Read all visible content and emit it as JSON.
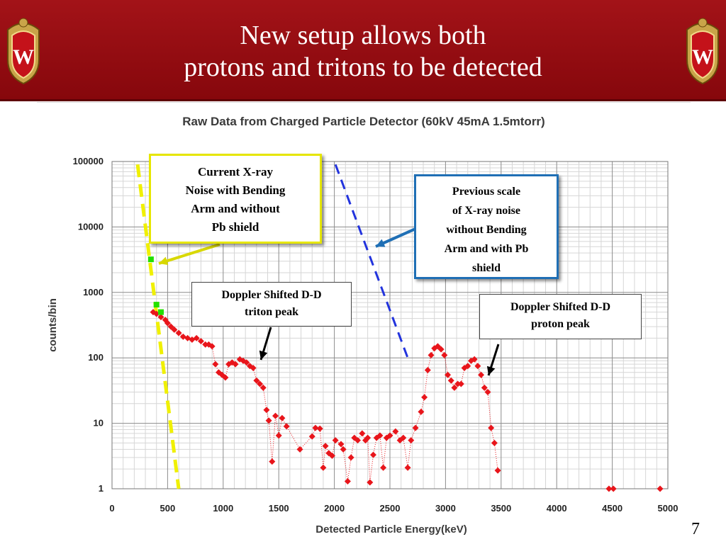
{
  "slide": {
    "title_line1": "New setup allows both",
    "title_line2": "protons and tritons to be detected",
    "page_number": "7"
  },
  "callouts": {
    "xray_current": [
      "Current X-ray",
      "Noise with Bending",
      "Arm and without",
      "Pb shield"
    ],
    "xray_previous": [
      "Previous scale",
      "of X-ray noise",
      "without Bending",
      "Arm and with Pb",
      "shield"
    ],
    "triton_peak": [
      "Doppler Shifted D-D",
      "triton peak"
    ],
    "proton_peak": [
      "Doppler Shifted D-D",
      "proton peak"
    ]
  },
  "chart_data": {
    "type": "scatter",
    "title": "Raw Data from Charged Particle Detector (60kV 45mA 1.5mtorr)",
    "xlabel": "Detected Particle Energy(keV)",
    "ylabel": "counts/bin",
    "xlim": [
      0,
      5000
    ],
    "ylim": [
      1,
      100000
    ],
    "y_scale": "log",
    "x_ticks": [
      0,
      500,
      1000,
      1500,
      2000,
      2500,
      3000,
      3500,
      4000,
      4500,
      5000
    ],
    "y_ticks": [
      1,
      10,
      100,
      1000,
      10000,
      100000
    ],
    "y_tick_labels": [
      "1",
      "10",
      "100",
      "1000",
      "10000",
      "100000"
    ],
    "grid": true,
    "series": [
      {
        "color": "#e8151b",
        "marker": "diamond",
        "line": "dotted",
        "points": [
          [
            370,
            500
          ],
          [
            400,
            470
          ],
          [
            440,
            420
          ],
          [
            480,
            380
          ],
          [
            500,
            340
          ],
          [
            530,
            300
          ],
          [
            560,
            270
          ],
          [
            600,
            240
          ],
          [
            640,
            210
          ],
          [
            680,
            200
          ],
          [
            720,
            190
          ],
          [
            760,
            200
          ],
          [
            800,
            180
          ],
          [
            840,
            160
          ],
          [
            870,
            160
          ],
          [
            900,
            150
          ],
          [
            930,
            80
          ],
          [
            960,
            60
          ],
          [
            990,
            55
          ],
          [
            1020,
            50
          ],
          [
            1050,
            80
          ],
          [
            1080,
            85
          ],
          [
            1110,
            80
          ],
          [
            1150,
            95
          ],
          [
            1180,
            90
          ],
          [
            1210,
            85
          ],
          [
            1240,
            75
          ],
          [
            1270,
            70
          ],
          [
            1300,
            45
          ],
          [
            1330,
            40
          ],
          [
            1360,
            35
          ],
          [
            1390,
            16
          ],
          [
            1410,
            11
          ],
          [
            1440,
            2.6
          ],
          [
            1470,
            13
          ],
          [
            1500,
            6.5
          ],
          [
            1530,
            12
          ],
          [
            1570,
            9
          ],
          [
            1690,
            4
          ],
          [
            1800,
            6.3
          ],
          [
            1830,
            8.5
          ],
          [
            1870,
            8.3
          ],
          [
            1900,
            2.1
          ],
          [
            1920,
            4.5
          ],
          [
            1950,
            3.5
          ],
          [
            1980,
            3.2
          ],
          [
            2010,
            5.5
          ],
          [
            2060,
            4.8
          ],
          [
            2080,
            4
          ],
          [
            2120,
            1.3
          ],
          [
            2150,
            3
          ],
          [
            2180,
            6
          ],
          [
            2210,
            5.5
          ],
          [
            2250,
            7
          ],
          [
            2280,
            5.5
          ],
          [
            2300,
            6
          ],
          [
            2320,
            1.25
          ],
          [
            2350,
            3.3
          ],
          [
            2380,
            6
          ],
          [
            2410,
            6.5
          ],
          [
            2440,
            2.1
          ],
          [
            2470,
            6
          ],
          [
            2500,
            6.5
          ],
          [
            2550,
            7.5
          ],
          [
            2590,
            5.5
          ],
          [
            2620,
            6
          ],
          [
            2660,
            2.1
          ],
          [
            2690,
            5.5
          ],
          [
            2730,
            8.5
          ],
          [
            2780,
            15
          ],
          [
            2810,
            25
          ],
          [
            2840,
            65
          ],
          [
            2870,
            110
          ],
          [
            2900,
            140
          ],
          [
            2930,
            150
          ],
          [
            2960,
            135
          ],
          [
            2990,
            110
          ],
          [
            3020,
            55
          ],
          [
            3050,
            45
          ],
          [
            3080,
            35
          ],
          [
            3110,
            40
          ],
          [
            3140,
            40
          ],
          [
            3170,
            70
          ],
          [
            3200,
            75
          ],
          [
            3230,
            90
          ],
          [
            3260,
            95
          ],
          [
            3290,
            75
          ],
          [
            3320,
            55
          ],
          [
            3350,
            35
          ],
          [
            3380,
            30
          ],
          [
            3410,
            8.5
          ],
          [
            3440,
            5
          ],
          [
            3470,
            1.9
          ],
          [
            4470,
            1
          ],
          [
            4510,
            1
          ],
          [
            4930,
            1
          ]
        ]
      },
      {
        "color": "#22e000",
        "marker": "square",
        "line": "none",
        "points": [
          [
            350,
            3200
          ],
          [
            400,
            650
          ],
          [
            440,
            500
          ]
        ]
      }
    ],
    "guide_lines": [
      {
        "color": "#f0f000",
        "style": "dashed",
        "from": [
          230,
          90000
        ],
        "to": [
          600,
          1
        ]
      },
      {
        "color": "#2233dd",
        "style": "dashed",
        "from": [
          2010,
          90000
        ],
        "to": [
          2660,
          100
        ]
      }
    ]
  }
}
